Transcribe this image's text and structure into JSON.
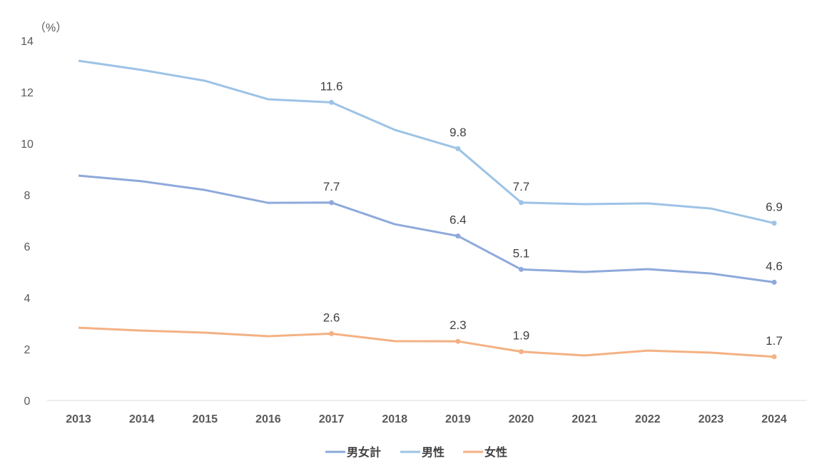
{
  "chart_data": {
    "type": "line",
    "title": "",
    "ylabel": "（%）",
    "xlabel": "",
    "ylim": [
      0,
      14
    ],
    "yticks": [
      0,
      2,
      4,
      6,
      8,
      10,
      12,
      14
    ],
    "categories": [
      "2013",
      "2014",
      "2015",
      "2016",
      "2017",
      "2018",
      "2019",
      "2020",
      "2021",
      "2022",
      "2023",
      "2024"
    ],
    "legend_position": "bottom",
    "grid": false,
    "series": [
      {
        "name": "男女計",
        "color": "#8EA9DB",
        "values": [
          8.75,
          8.53,
          8.19,
          7.69,
          7.7,
          6.86,
          6.4,
          5.1,
          5.0,
          5.11,
          4.94,
          4.6
        ],
        "labels": {
          "4": "7.7",
          "6": "6.4",
          "7": "5.1",
          "11": "4.6"
        }
      },
      {
        "name": "男性",
        "color": "#9DC3E6",
        "values": [
          13.22,
          12.86,
          12.44,
          11.72,
          11.6,
          10.53,
          9.8,
          7.7,
          7.64,
          7.67,
          7.47,
          6.9
        ],
        "labels": {
          "4": "11.6",
          "6": "9.8",
          "7": "7.7",
          "11": "6.9"
        }
      },
      {
        "name": "女性",
        "color": "#F4B183",
        "values": [
          2.83,
          2.72,
          2.64,
          2.5,
          2.6,
          2.31,
          2.3,
          1.9,
          1.75,
          1.94,
          1.86,
          1.7
        ],
        "labels": {
          "4": "2.6",
          "6": "2.3",
          "7": "1.9",
          "11": "1.7"
        }
      }
    ]
  }
}
